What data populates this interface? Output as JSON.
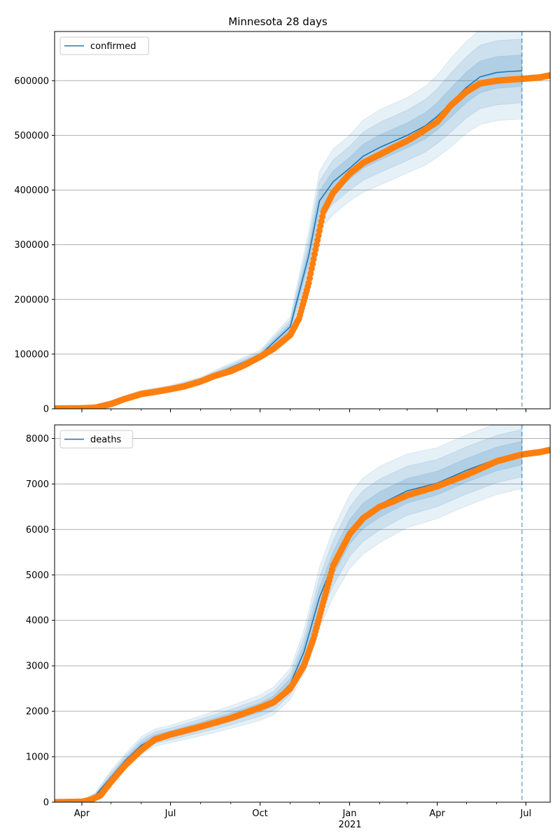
{
  "title": "Minnesota 28 days",
  "colors": {
    "model": "#1f77b4",
    "observed": "#ff7f0e",
    "grid": "#b0b0b0"
  },
  "x_axis": {
    "ticks": [
      {
        "date": "2020-04-01",
        "label": "Apr"
      },
      {
        "date": "2020-07-01",
        "label": "Jul"
      },
      {
        "date": "2020-10-01",
        "label": "Oct"
      },
      {
        "date": "2021-01-01",
        "label": "Jan"
      },
      {
        "date": "2021-04-01",
        "label": "Apr"
      },
      {
        "date": "2021-07-01",
        "label": "Jul"
      }
    ],
    "year_label": "2021",
    "range": [
      "2020-03-04",
      "2021-07-26"
    ],
    "forecast_line": "2021-06-27"
  },
  "chart_data": [
    {
      "type": "line",
      "series_name": "confirmed",
      "legend": "confirmed",
      "legend_position": "upper-left",
      "grid": "horizontal",
      "ylim": [
        0,
        690000
      ],
      "yticks": [
        0,
        100000,
        200000,
        300000,
        400000,
        500000,
        600000
      ],
      "model": {
        "x": [
          "2020-03-04",
          "2020-04-01",
          "2020-05-01",
          "2020-06-01",
          "2020-07-01",
          "2020-08-01",
          "2020-09-01",
          "2020-10-01",
          "2020-11-01",
          "2020-11-20",
          "2020-12-01",
          "2020-12-15",
          "2021-01-01",
          "2021-01-15",
          "2021-02-01",
          "2021-03-01",
          "2021-03-20",
          "2021-04-01",
          "2021-04-15",
          "2021-05-01",
          "2021-05-15",
          "2021-06-01",
          "2021-06-15",
          "2021-06-27"
        ],
        "mean": [
          1000,
          1500,
          12000,
          28000,
          37000,
          52000,
          75000,
          98000,
          150000,
          280000,
          380000,
          415000,
          440000,
          462000,
          478000,
          500000,
          518000,
          535000,
          560000,
          588000,
          607000,
          615000,
          617000,
          618000
        ],
        "band_inner": {
          "lower": [
            800,
            1300,
            11000,
            26000,
            35000,
            50000,
            72000,
            95000,
            144000,
            265000,
            362000,
            395000,
            420000,
            440000,
            455000,
            477000,
            494000,
            510000,
            533000,
            560000,
            578000,
            586000,
            588000,
            590000
          ],
          "upper": [
            1200,
            1700,
            13000,
            30000,
            39000,
            54000,
            78000,
            101000,
            156000,
            295000,
            398000,
            435000,
            460000,
            484000,
            501000,
            523000,
            542000,
            560000,
            587000,
            616000,
            636000,
            644000,
            646000,
            647000
          ]
        },
        "band_mid": {
          "lower": [
            600,
            1100,
            10000,
            24000,
            33000,
            48000,
            69000,
            92000,
            138000,
            250000,
            344000,
            375000,
            400000,
            418000,
            432000,
            454000,
            470000,
            485000,
            506000,
            532000,
            549000,
            556000,
            558000,
            560000
          ],
          "upper": [
            1400,
            1900,
            14000,
            32000,
            41000,
            56000,
            81000,
            104000,
            162000,
            310000,
            416000,
            455000,
            480000,
            506000,
            524000,
            546000,
            566000,
            585000,
            614000,
            644000,
            665000,
            673000,
            675000,
            676000
          ]
        },
        "band_outer": {
          "lower": [
            400,
            900,
            9000,
            22000,
            31000,
            46000,
            66000,
            89000,
            132000,
            235000,
            326000,
            355000,
            380000,
            396000,
            409000,
            431000,
            446000,
            460000,
            479000,
            504000,
            520000,
            527000,
            529000,
            530000
          ],
          "upper": [
            1600,
            2100,
            15000,
            34000,
            43000,
            58000,
            84000,
            107000,
            168000,
            325000,
            434000,
            475000,
            500000,
            528000,
            547000,
            569000,
            590000,
            610000,
            641000,
            672000,
            693000,
            702000,
            704000,
            705000
          ]
        }
      },
      "observed": {
        "x": [
          "2020-03-04",
          "2020-04-01",
          "2020-04-15",
          "2020-05-01",
          "2020-05-15",
          "2020-06-01",
          "2020-06-15",
          "2020-07-01",
          "2020-07-15",
          "2020-08-01",
          "2020-08-15",
          "2020-09-01",
          "2020-09-15",
          "2020-10-01",
          "2020-10-15",
          "2020-11-01",
          "2020-11-10",
          "2020-11-20",
          "2020-11-28",
          "2020-12-05",
          "2020-12-15",
          "2021-01-01",
          "2021-01-15",
          "2021-02-01",
          "2021-02-15",
          "2021-03-01",
          "2021-03-15",
          "2021-04-01",
          "2021-04-15",
          "2021-05-01",
          "2021-05-15",
          "2021-06-01",
          "2021-06-15",
          "2021-07-01",
          "2021-07-15",
          "2021-07-26"
        ],
        "y": [
          500,
          1000,
          2000,
          9000,
          18000,
          27000,
          31000,
          36000,
          41000,
          50000,
          60000,
          69000,
          80000,
          95000,
          110000,
          135000,
          165000,
          230000,
          300000,
          360000,
          395000,
          430000,
          450000,
          465000,
          478000,
          490000,
          505000,
          525000,
          555000,
          580000,
          595000,
          600000,
          602000,
          604000,
          606000,
          610000
        ]
      }
    },
    {
      "type": "line",
      "series_name": "deaths",
      "legend": "deaths",
      "legend_position": "upper-left",
      "grid": "horizontal",
      "ylim": [
        0,
        8300
      ],
      "yticks": [
        0,
        1000,
        2000,
        3000,
        4000,
        5000,
        6000,
        7000,
        8000
      ],
      "model": {
        "x": [
          "2020-03-04",
          "2020-04-01",
          "2020-04-15",
          "2020-05-01",
          "2020-05-15",
          "2020-06-01",
          "2020-06-15",
          "2020-07-01",
          "2020-08-01",
          "2020-09-01",
          "2020-10-01",
          "2020-10-15",
          "2020-11-01",
          "2020-11-15",
          "2020-12-01",
          "2020-12-15",
          "2021-01-01",
          "2021-01-15",
          "2021-02-01",
          "2021-03-01",
          "2021-04-01",
          "2021-05-01",
          "2021-06-01",
          "2021-06-27"
        ],
        "mean": [
          10,
          30,
          150,
          550,
          900,
          1250,
          1420,
          1500,
          1680,
          1870,
          2080,
          2230,
          2600,
          3300,
          4500,
          5250,
          5950,
          6300,
          6550,
          6850,
          7020,
          7300,
          7550,
          7680
        ],
        "band_inner": {
          "lower": [
            8,
            25,
            130,
            500,
            850,
            1180,
            1350,
            1430,
            1600,
            1780,
            1980,
            2120,
            2480,
            3140,
            4280,
            5000,
            5680,
            6020,
            6270,
            6580,
            6760,
            7040,
            7290,
            7420
          ],
          "upper": [
            12,
            35,
            170,
            600,
            950,
            1320,
            1490,
            1570,
            1760,
            1960,
            2180,
            2340,
            2720,
            3460,
            4720,
            5500,
            6220,
            6580,
            6830,
            7120,
            7280,
            7560,
            7810,
            7940
          ]
        },
        "band_mid": {
          "lower": [
            6,
            20,
            110,
            450,
            800,
            1120,
            1290,
            1370,
            1530,
            1700,
            1890,
            2020,
            2370,
            2980,
            4060,
            4750,
            5410,
            5740,
            5990,
            6310,
            6500,
            6780,
            7030,
            7160
          ],
          "upper": [
            14,
            40,
            190,
            650,
            1000,
            1380,
            1550,
            1630,
            1830,
            2040,
            2270,
            2440,
            2830,
            3620,
            4940,
            5750,
            6490,
            6860,
            7110,
            7390,
            7540,
            7820,
            8070,
            8200
          ]
        },
        "band_outer": {
          "lower": [
            4,
            15,
            90,
            400,
            750,
            1060,
            1230,
            1310,
            1460,
            1620,
            1800,
            1920,
            2260,
            2820,
            3840,
            4500,
            5140,
            5460,
            5710,
            6040,
            6240,
            6520,
            6770,
            6900
          ],
          "upper": [
            16,
            45,
            210,
            700,
            1050,
            1440,
            1610,
            1690,
            1900,
            2120,
            2360,
            2540,
            2940,
            3780,
            5160,
            6000,
            6760,
            7140,
            7390,
            7660,
            7800,
            8080,
            8330,
            8460
          ]
        }
      },
      "observed": {
        "x": [
          "2020-03-04",
          "2020-04-01",
          "2020-04-10",
          "2020-04-20",
          "2020-05-01",
          "2020-05-15",
          "2020-06-01",
          "2020-06-15",
          "2020-07-01",
          "2020-08-01",
          "2020-09-01",
          "2020-10-01",
          "2020-10-15",
          "2020-11-01",
          "2020-11-15",
          "2020-11-25",
          "2020-12-05",
          "2020-12-15",
          "2021-01-01",
          "2021-01-15",
          "2021-02-01",
          "2021-02-15",
          "2021-03-01",
          "2021-04-01",
          "2021-05-01",
          "2021-06-01",
          "2021-06-27",
          "2021-07-15",
          "2021-07-26"
        ],
        "y": [
          0,
          10,
          50,
          150,
          450,
          800,
          1150,
          1380,
          1490,
          1660,
          1850,
          2080,
          2200,
          2500,
          3000,
          3600,
          4400,
          5200,
          5900,
          6250,
          6500,
          6620,
          6750,
          6950,
          7200,
          7500,
          7650,
          7700,
          7750
        ]
      }
    }
  ]
}
